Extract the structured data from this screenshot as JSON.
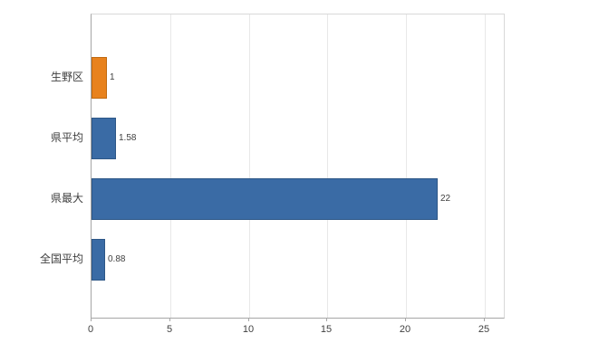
{
  "chart_data": {
    "type": "bar",
    "orientation": "horizontal",
    "title": "",
    "xlabel": "",
    "ylabel": "",
    "categories": [
      "生野区",
      "県平均",
      "県最大",
      "全国平均"
    ],
    "values": [
      1,
      1.58,
      22,
      0.88
    ],
    "value_labels": [
      "1",
      "1.58",
      "22",
      "0.88"
    ],
    "bar_colors": [
      "#e8821d",
      "#3a6ba5",
      "#3a6ba5",
      "#3a6ba5"
    ],
    "bar_border_colors": [
      "#c06a10",
      "#2d5787",
      "#2d5787",
      "#2d5787"
    ],
    "xlim": [
      0,
      26.2
    ],
    "xticks": [
      0,
      5,
      10,
      15,
      20,
      25
    ],
    "grid": true,
    "legend": false
  },
  "colors": {
    "series_blue": "#3a6ba5",
    "series_orange": "#e8821d",
    "grid_line": "#e8e8e8",
    "axis_line": "#a6a6a6",
    "text": "#3f3f3f",
    "background": "#ffffff"
  }
}
